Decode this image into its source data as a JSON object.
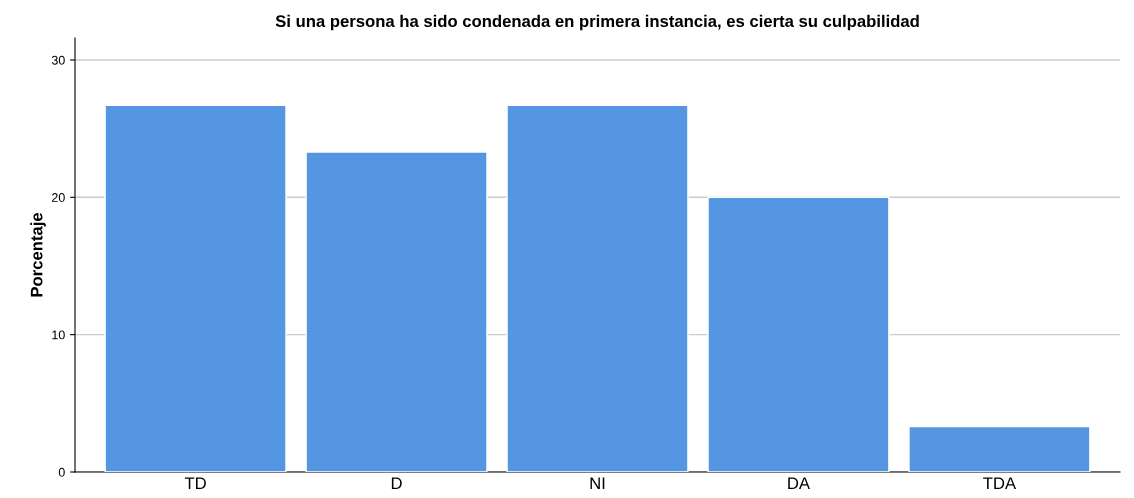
{
  "chart_data": {
    "type": "bar",
    "title": "Si una persona ha sido condenada en primera instancia, es cierta su culpabilidad",
    "ylabel": "Porcentaje",
    "categories": [
      "TD",
      "D",
      "NI",
      "DA",
      "TDA"
    ],
    "values": [
      26.7,
      23.3,
      26.7,
      20.0,
      3.3
    ],
    "color": "#5596e3",
    "ylim": [
      0,
      31.6
    ],
    "yticks": [
      0,
      10,
      20,
      30
    ],
    "grid": "y",
    "legend": false
  }
}
